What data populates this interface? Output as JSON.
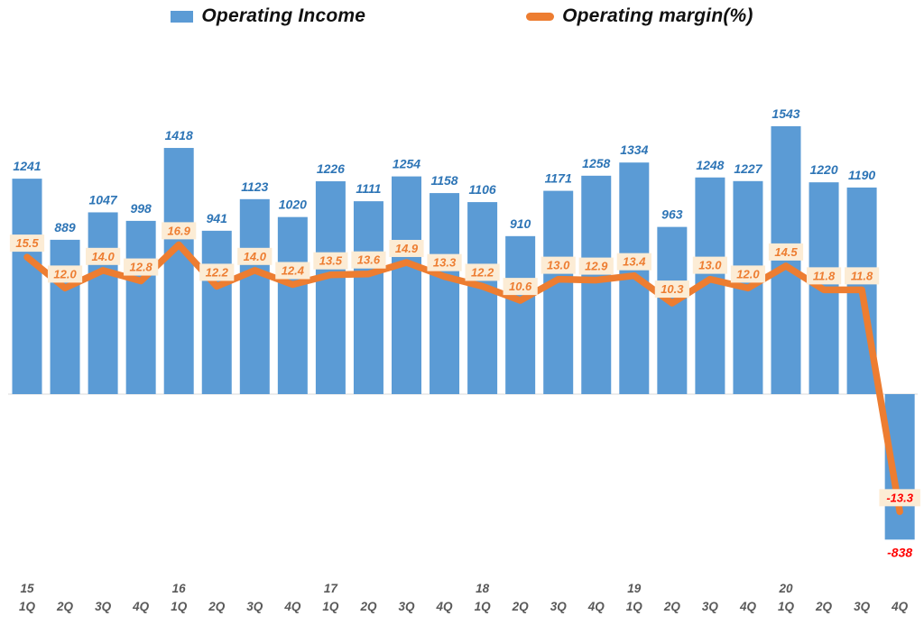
{
  "legend": {
    "income_label": "Operating Income",
    "margin_label": "Operating margin(%)"
  },
  "colors": {
    "bar": "#5B9BD5",
    "bar_label": "#2E75B6",
    "line": "#ED7D31",
    "margin_box_bg": "#FCECD5",
    "margin_box_text": "#ED7D31",
    "negative_label": "#FF0000",
    "axis_label": "#595959",
    "baseline": "#D9D9D9"
  },
  "chart_data": {
    "type": "combo-bar-line",
    "title": "",
    "legend_position": "top",
    "gridlines": false,
    "data_labels": true,
    "y_axis_visible": false,
    "categories": [
      {
        "year": "15",
        "quarter": "1Q"
      },
      {
        "quarter": "2Q"
      },
      {
        "quarter": "3Q"
      },
      {
        "quarter": "4Q"
      },
      {
        "year": "16",
        "quarter": "1Q"
      },
      {
        "quarter": "2Q"
      },
      {
        "quarter": "3Q"
      },
      {
        "quarter": "4Q"
      },
      {
        "year": "17",
        "quarter": "1Q"
      },
      {
        "quarter": "2Q"
      },
      {
        "quarter": "3Q"
      },
      {
        "quarter": "4Q"
      },
      {
        "year": "18",
        "quarter": "1Q"
      },
      {
        "quarter": "2Q"
      },
      {
        "quarter": "3Q"
      },
      {
        "quarter": "4Q"
      },
      {
        "year": "19",
        "quarter": "1Q"
      },
      {
        "quarter": "2Q"
      },
      {
        "quarter": "3Q"
      },
      {
        "quarter": "4Q"
      },
      {
        "year": "20",
        "quarter": "1Q"
      },
      {
        "quarter": "2Q"
      },
      {
        "quarter": "3Q"
      },
      {
        "quarter": "4Q"
      }
    ],
    "series": [
      {
        "name": "Operating Income",
        "type": "bar",
        "values": [
          1241,
          889,
          1047,
          998,
          1418,
          941,
          1123,
          1020,
          1226,
          1111,
          1254,
          1158,
          1106,
          910,
          1171,
          1258,
          1334,
          963,
          1248,
          1227,
          1543,
          1220,
          1190,
          -838
        ]
      },
      {
        "name": "Operating margin(%)",
        "type": "line",
        "unit": "%",
        "values": [
          15.5,
          12.0,
          14.0,
          12.8,
          16.9,
          12.2,
          14.0,
          12.4,
          13.5,
          13.6,
          14.9,
          13.3,
          12.2,
          10.6,
          13.0,
          12.9,
          13.4,
          10.3,
          13.0,
          12.0,
          14.5,
          11.8,
          11.8,
          -13.3
        ]
      }
    ]
  }
}
